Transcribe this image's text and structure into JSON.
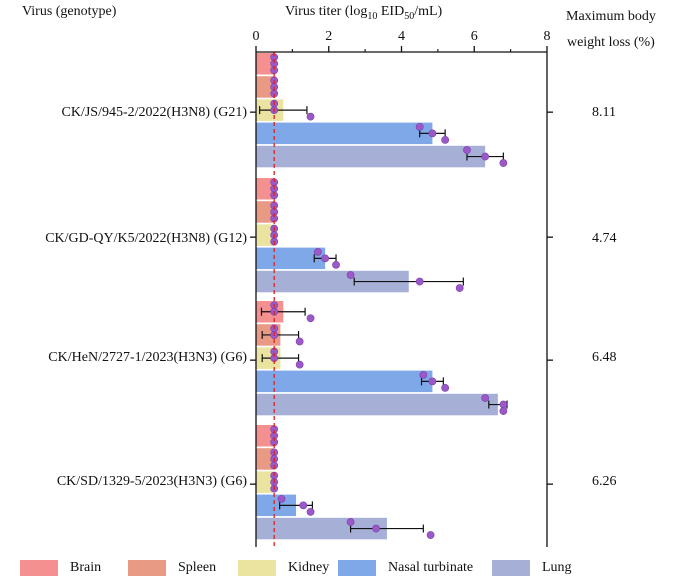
{
  "headers": {
    "virus": "Virus (genotype)",
    "titer_prefix": "Virus titer (log",
    "titer_sub10": "10",
    "titer_mid": " EID",
    "titer_sub50": "50",
    "titer_suffix": "/mL)",
    "weight_line1": "Maximum body",
    "weight_line2": "weight loss (%)"
  },
  "chart_data": {
    "type": "bar",
    "orientation": "horizontal",
    "xlim": [
      0,
      8
    ],
    "xticks": [
      "0",
      "2",
      "4",
      "6",
      "8"
    ],
    "reference_line": 0.5,
    "categories": [
      "CK/JS/945-2/2022(H3N8) (G21)",
      "CK/GD-QY/K5/2022(H3N8) (G12)",
      "CK/HeN/2727-1/2023(H3N3) (G6)",
      "CK/SD/1329-5/2023(H3N3) (G6)"
    ],
    "weight_loss": [
      "8.11",
      "4.74",
      "6.48",
      "6.26"
    ],
    "series": [
      {
        "name": "Brain",
        "color": "#f4908f",
        "values": [
          0.5,
          0.5,
          0.75,
          0.5
        ],
        "errors": [
          0,
          0,
          0.6,
          0
        ],
        "points": [
          [
            0.5,
            0.5,
            0.5
          ],
          [
            0.5,
            0.5,
            0.5
          ],
          [
            0.5,
            0.5,
            1.5
          ],
          [
            0.5,
            0.5,
            0.5
          ]
        ]
      },
      {
        "name": "Spleen",
        "color": "#e89a85",
        "values": [
          0.5,
          0.5,
          0.67,
          0.5
        ],
        "errors": [
          0,
          0,
          0.5,
          0
        ],
        "points": [
          [
            0.5,
            0.5,
            0.5
          ],
          [
            0.5,
            0.5,
            0.5
          ],
          [
            0.5,
            0.5,
            1.2
          ],
          [
            0.5,
            0.5,
            0.5
          ]
        ]
      },
      {
        "name": "Kidney",
        "color": "#ebe3a0",
        "values": [
          0.75,
          0.5,
          0.67,
          0.5
        ],
        "errors": [
          0.65,
          0,
          0.5,
          0
        ],
        "points": [
          [
            0.5,
            0.5,
            1.5
          ],
          [
            0.5,
            0.5,
            0.5
          ],
          [
            0.5,
            0.5,
            1.2
          ],
          [
            0.5,
            0.5,
            0.5
          ]
        ]
      },
      {
        "name": "Nasal turbinate",
        "color": "#7fa8e8",
        "values": [
          4.85,
          1.9,
          4.85,
          1.1
        ],
        "errors": [
          0.35,
          0.3,
          0.3,
          0.45
        ],
        "points": [
          [
            4.5,
            4.85,
            5.2
          ],
          [
            1.7,
            1.9,
            2.2
          ],
          [
            4.6,
            4.85,
            5.2
          ],
          [
            0.7,
            1.3,
            1.5
          ]
        ]
      },
      {
        "name": "Lung",
        "color": "#a6b0d6",
        "values": [
          6.3,
          4.2,
          6.65,
          3.6
        ],
        "errors": [
          0.5,
          1.5,
          0.25,
          1.0
        ],
        "points": [
          [
            5.8,
            6.3,
            6.8
          ],
          [
            2.6,
            4.5,
            5.6
          ],
          [
            6.3,
            6.8,
            6.8
          ],
          [
            2.6,
            3.3,
            4.8
          ]
        ]
      }
    ]
  }
}
